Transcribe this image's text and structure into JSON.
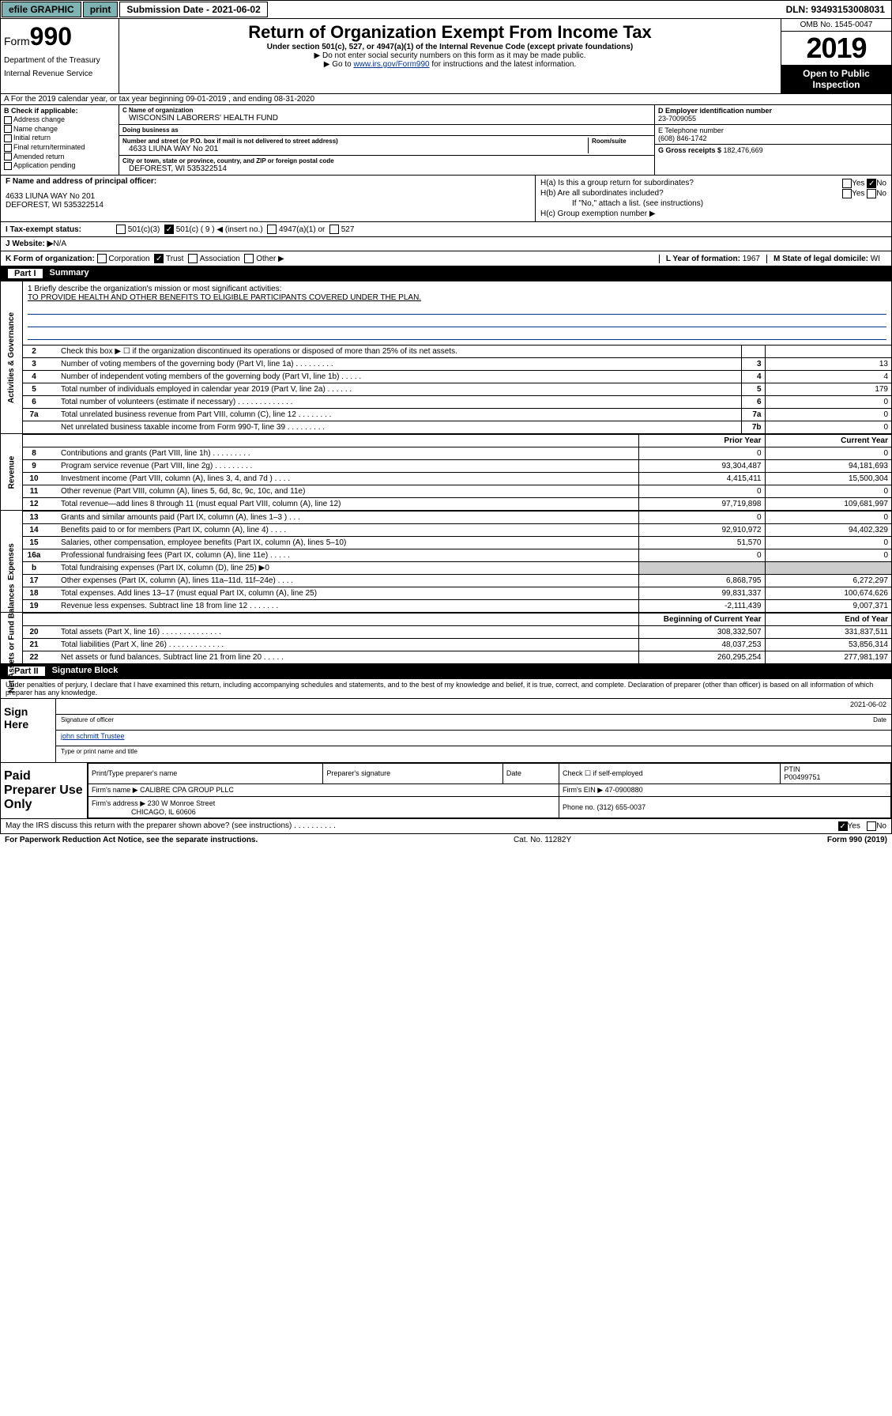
{
  "topbar": {
    "efile": "efile GRAPHIC",
    "print": "print",
    "subdate_label": "Submission Date - 2021-06-02",
    "dln": "DLN: 93493153008031"
  },
  "header": {
    "form_label": "Form",
    "form_num": "990",
    "dept": "Department of the Treasury",
    "irs": "Internal Revenue Service",
    "title": "Return of Organization Exempt From Income Tax",
    "subtitle": "Under section 501(c), 527, or 4947(a)(1) of the Internal Revenue Code (except private foundations)",
    "note1": "▶ Do not enter social security numbers on this form as it may be made public.",
    "note2_pre": "▶ Go to ",
    "note2_link": "www.irs.gov/Form990",
    "note2_post": " for instructions and the latest information.",
    "omb": "OMB No. 1545-0047",
    "year": "2019",
    "open": "Open to Public Inspection"
  },
  "sectionA": "A For the 2019 calendar year, or tax year beginning 09-01-2019     , and ending 08-31-2020",
  "boxB": {
    "title": "B Check if applicable:",
    "items": [
      "Address change",
      "Name change",
      "Initial return",
      "Final return/terminated",
      "Amended return",
      "Application pending"
    ]
  },
  "boxC": {
    "name_lbl": "C Name of organization",
    "name": "WISCONSIN LABORERS' HEALTH FUND",
    "dba_lbl": "Doing business as",
    "dba": "",
    "addr_lbl": "Number and street (or P.O. box if mail is not delivered to street address)",
    "room_lbl": "Room/suite",
    "addr": "4633 LIUNA WAY No 201",
    "city_lbl": "City or town, state or province, country, and ZIP or foreign postal code",
    "city": "DEFOREST, WI  535322514"
  },
  "boxD": {
    "ein_lbl": "D Employer identification number",
    "ein": "23-7009055",
    "phone_lbl": "E Telephone number",
    "phone": "(608) 846-1742",
    "gross_lbl": "G Gross receipts $ ",
    "gross": "182,476,669"
  },
  "boxF": {
    "lbl": "F Name and address of principal officer:",
    "line1": "4633 LIUNA WAY No 201",
    "line2": "DEFOREST, WI  535322514"
  },
  "boxH": {
    "a": "H(a)  Is this a group return for subordinates?",
    "b": "H(b)  Are all subordinates included?",
    "b_note": "If \"No,\" attach a list. (see instructions)",
    "c": "H(c)  Group exemption number ▶",
    "yes": "Yes",
    "no": "No"
  },
  "taxExempt": {
    "lbl": "I   Tax-exempt status:",
    "c3": "501(c)(3)",
    "c": "501(c) ( 9 ) ◀ (insert no.)",
    "a1": "4947(a)(1) or",
    "s527": "527"
  },
  "website": {
    "lbl": "J   Website: ▶",
    "val": "  N/A"
  },
  "kform": {
    "lbl": "K Form of organization:",
    "corp": "Corporation",
    "trust": "Trust",
    "assoc": "Association",
    "other": "Other ▶",
    "year_lbl": "L Year of formation: ",
    "year": "1967",
    "state_lbl": "M State of legal domicile: ",
    "state": "WI"
  },
  "part1": {
    "num": "Part I",
    "title": "Summary"
  },
  "mission": {
    "q": "1  Briefly describe the organization's mission or most significant activities:",
    "a": "TO PROVIDE HEALTH AND OTHER BENEFITS TO ELIGIBLE PARTICIPANTS COVERED UNDER THE PLAN."
  },
  "gov_rows": [
    {
      "n": "2",
      "desc": "Check this box ▶ ☐  if the organization discontinued its operations or disposed of more than 25% of its net assets.",
      "num": "",
      "val": ""
    },
    {
      "n": "3",
      "desc": "Number of voting members of the governing body (Part VI, line 1a)  .    .    .    .    .    .    .    .    .",
      "num": "3",
      "val": "13"
    },
    {
      "n": "4",
      "desc": "Number of independent voting members of the governing body (Part VI, line 1b)   .    .    .    .    .",
      "num": "4",
      "val": "4"
    },
    {
      "n": "5",
      "desc": "Total number of individuals employed in calendar year 2019 (Part V, line 2a)   .    .    .    .    .    .",
      "num": "5",
      "val": "179"
    },
    {
      "n": "6",
      "desc": "Total number of volunteers (estimate if necessary)   .    .    .    .    .    .    .    .    .    .    .    .    .",
      "num": "6",
      "val": "0"
    },
    {
      "n": "7a",
      "desc": "Total unrelated business revenue from Part VIII, column (C), line 12   .    .    .    .    .    .    .    .",
      "num": "7a",
      "val": "0"
    },
    {
      "n": "",
      "desc": "Net unrelated business taxable income from Form 990-T, line 39   .    .    .    .    .    .    .    .    .",
      "num": "7b",
      "val": "0"
    }
  ],
  "two_col_hdr": {
    "prior": "Prior Year",
    "current": "Current Year"
  },
  "rev_rows": [
    {
      "n": "8",
      "desc": "Contributions and grants (Part VIII, line 1h)   .    .    .    .    .    .    .    .    .",
      "p": "0",
      "c": "0"
    },
    {
      "n": "9",
      "desc": "Program service revenue (Part VIII, line 2g)   .    .    .    .    .    .    .    .    .",
      "p": "93,304,487",
      "c": "94,181,693"
    },
    {
      "n": "10",
      "desc": "Investment income (Part VIII, column (A), lines 3, 4, and 7d )   .    .    .    .",
      "p": "4,415,411",
      "c": "15,500,304"
    },
    {
      "n": "11",
      "desc": "Other revenue (Part VIII, column (A), lines 5, 6d, 8c, 9c, 10c, and 11e)",
      "p": "0",
      "c": "0"
    },
    {
      "n": "12",
      "desc": "Total revenue—add lines 8 through 11 (must equal Part VIII, column (A), line 12)",
      "p": "97,719,898",
      "c": "109,681,997"
    }
  ],
  "exp_rows": [
    {
      "n": "13",
      "desc": "Grants and similar amounts paid (Part IX, column (A), lines 1–3 )   .    .    .",
      "p": "0",
      "c": "0"
    },
    {
      "n": "14",
      "desc": "Benefits paid to or for members (Part IX, column (A), line 4)   .    .    .    .",
      "p": "92,910,972",
      "c": "94,402,329"
    },
    {
      "n": "15",
      "desc": "Salaries, other compensation, employee benefits (Part IX, column (A), lines 5–10)",
      "p": "51,570",
      "c": "0"
    },
    {
      "n": "16a",
      "desc": "Professional fundraising fees (Part IX, column (A), line 11e)   .    .    .    .    .",
      "p": "0",
      "c": "0"
    },
    {
      "n": "b",
      "desc": "Total fundraising expenses (Part IX, column (D), line 25) ▶0",
      "p": "",
      "c": "",
      "grey": true
    },
    {
      "n": "17",
      "desc": "Other expenses (Part IX, column (A), lines 11a–11d, 11f–24e)   .    .    .    .",
      "p": "6,868,795",
      "c": "6,272,297"
    },
    {
      "n": "18",
      "desc": "Total expenses. Add lines 13–17 (must equal Part IX, column (A), line 25)",
      "p": "99,831,337",
      "c": "100,674,626"
    },
    {
      "n": "19",
      "desc": "Revenue less expenses. Subtract line 18 from line 12   .    .    .    .    .    .    .",
      "p": "-2,111,439",
      "c": "9,007,371"
    }
  ],
  "na_hdr": {
    "beg": "Beginning of Current Year",
    "end": "End of Year"
  },
  "na_rows": [
    {
      "n": "20",
      "desc": "Total assets (Part X, line 16)   .    .    .    .    .    .    .    .    .    .    .    .    .    .",
      "p": "308,332,507",
      "c": "331,837,511"
    },
    {
      "n": "21",
      "desc": "Total liabilities (Part X, line 26)   .    .    .    .    .    .    .    .    .    .    .    .    .",
      "p": "48,037,253",
      "c": "53,856,314"
    },
    {
      "n": "22",
      "desc": "Net assets or fund balances. Subtract line 21 from line 20   .    .    .    .    .",
      "p": "260,295,254",
      "c": "277,981,197"
    }
  ],
  "vlabels": {
    "gov": "Activities & Governance",
    "rev": "Revenue",
    "exp": "Expenses",
    "na": "Net Assets or Fund Balances"
  },
  "part2": {
    "num": "Part II",
    "title": "Signature Block"
  },
  "perjury": "Under penalties of perjury, I declare that I have examined this return, including accompanying schedules and statements, and to the best of my knowledge and belief, it is true, correct, and complete. Declaration of preparer (other than officer) is based on all information of which preparer has any knowledge.",
  "sign": {
    "side": "Sign Here",
    "sig_officer": "Signature of officer",
    "date_lbl": "Date",
    "date": "2021-06-02",
    "name": "john schmitt  Trustee",
    "name_lbl": "Type or print name and title"
  },
  "paid": {
    "side": "Paid Preparer Use Only",
    "h1": "Print/Type preparer's name",
    "h2": "Preparer's signature",
    "h3": "Date",
    "h4_a": "Check ☐ if self-employed",
    "h5": "PTIN",
    "ptin": "P00499751",
    "firm_lbl": "Firm's name      ▶ ",
    "firm": "CALIBRE CPA GROUP PLLC",
    "ein_lbl": "Firm's EIN ▶ ",
    "ein": "47-0900880",
    "addr_lbl": "Firm's address ▶ ",
    "addr1": "230 W Monroe Street",
    "addr2": "CHICAGO, IL  60606",
    "phone_lbl": "Phone no. ",
    "phone": "(312) 655-0037"
  },
  "discuss": {
    "q": "May the IRS discuss this return with the preparer shown above? (see instructions)   .    .    .    .    .    .    .    .    .    .",
    "yes": "Yes",
    "no": "No"
  },
  "footer": {
    "left": "For Paperwork Reduction Act Notice, see the separate instructions.",
    "mid": "Cat. No. 11282Y",
    "right": "Form 990 (2019)"
  }
}
